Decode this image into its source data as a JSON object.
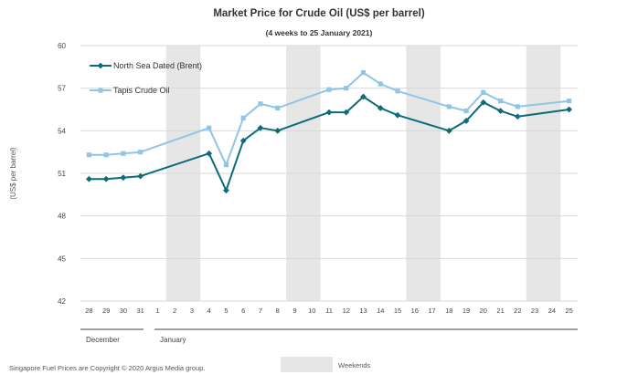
{
  "chart_data": {
    "type": "line",
    "title": "Market Price for Crude Oil  (US$  per barrel)",
    "subtitle": "(4 weeks to 25 January 2021)",
    "ylabel": "(US$ per barrel)",
    "ylim": [
      42,
      60
    ],
    "yticks": [
      42,
      45,
      48,
      51,
      54,
      57,
      60
    ],
    "categories": [
      "28",
      "29",
      "30",
      "31",
      "1",
      "2",
      "3",
      "4",
      "5",
      "6",
      "7",
      "8",
      "9",
      "10",
      "11",
      "12",
      "13",
      "14",
      "15",
      "16",
      "17",
      "18",
      "19",
      "20",
      "21",
      "22",
      "23",
      "24",
      "25"
    ],
    "month_labels": [
      {
        "label": "December",
        "start": 0,
        "end": 3
      },
      {
        "label": "January",
        "start": 4,
        "end": 28
      }
    ],
    "weekend_bands": [
      [
        5,
        6
      ],
      [
        12,
        13
      ],
      [
        19,
        20
      ],
      [
        26,
        27
      ]
    ],
    "series": [
      {
        "name": "North Sea Dated (Brent)",
        "color": "#0d6b7a",
        "marker": "diamond",
        "values": [
          50.6,
          50.6,
          50.7,
          50.8,
          null,
          null,
          null,
          52.4,
          49.8,
          53.3,
          54.2,
          54.0,
          null,
          null,
          55.3,
          55.3,
          56.4,
          55.6,
          55.1,
          null,
          null,
          54.0,
          54.7,
          56.0,
          55.4,
          55.0,
          null,
          null,
          55.5
        ]
      },
      {
        "name": "Tapis Crude Oil",
        "color": "#92c4e4",
        "marker": "square",
        "values": [
          52.3,
          52.3,
          52.4,
          52.5,
          null,
          null,
          null,
          54.2,
          51.6,
          54.9,
          55.9,
          55.6,
          null,
          null,
          56.9,
          57.0,
          58.1,
          57.3,
          56.8,
          null,
          null,
          55.7,
          55.4,
          56.7,
          56.1,
          55.7,
          null,
          null,
          56.1
        ]
      }
    ],
    "legend_position": "top-left",
    "weekends_label": "Weekends",
    "footer": "Singapore  Fuel Prices are Copyright  © 2020  Argus Media group."
  }
}
